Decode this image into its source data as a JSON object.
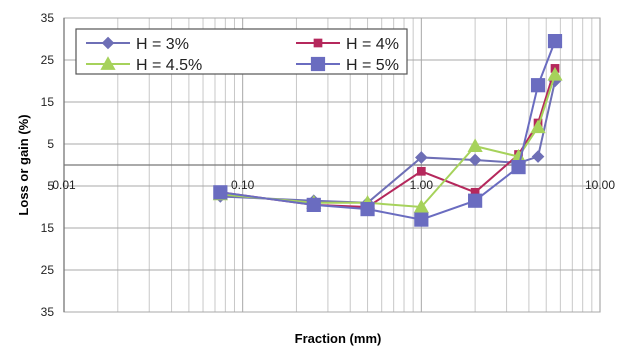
{
  "chart_data": {
    "type": "line",
    "xscale": "log",
    "xlim": [
      0.01,
      10
    ],
    "ylim": [
      -35,
      35
    ],
    "xlabel": "Fraction (mm)",
    "ylabel": "Loss or gain (%)",
    "x_tick_labels": [
      "0.01",
      "0.10",
      "1.00",
      "10.00"
    ],
    "x_tick_values": [
      0.01,
      0.1,
      1,
      10
    ],
    "y_tick_labels": [
      "35",
      "25",
      "15",
      "5",
      "5",
      "15",
      "25",
      "35"
    ],
    "y_tick_values": [
      35,
      25,
      15,
      5,
      -5,
      -15,
      -25,
      -35
    ],
    "grid": true,
    "legend_position": "top-left",
    "series": [
      {
        "name": "H = 3%",
        "marker": "diamond",
        "color": "#6e6fb6",
        "x": [
          0.075,
          0.25,
          0.5,
          1.0,
          2.0,
          3.5,
          4.5,
          5.6
        ],
        "y": [
          -7.5,
          -8.5,
          -9.0,
          1.8,
          1.2,
          0.5,
          2.0,
          20.0
        ]
      },
      {
        "name": "H = 4%",
        "marker": "square",
        "color": "#b5285c",
        "x": [
          0.075,
          0.25,
          0.5,
          1.0,
          2.0,
          3.5,
          4.5,
          5.6
        ],
        "y": [
          -6.5,
          -9.5,
          -10.0,
          -1.5,
          -6.5,
          2.5,
          10.0,
          23.0
        ]
      },
      {
        "name": "H = 4.5%",
        "marker": "triangle",
        "color": "#a6d25b",
        "x": [
          0.075,
          0.25,
          0.5,
          1.0,
          2.0,
          3.5,
          4.5,
          5.6
        ],
        "y": [
          -7.0,
          -9.0,
          -9.0,
          -10.0,
          4.5,
          2.0,
          9.0,
          21.5
        ]
      },
      {
        "name": "H = 5%",
        "marker": "square",
        "color": "#6a6cc0",
        "x": [
          0.075,
          0.25,
          0.5,
          1.0,
          2.0,
          3.5,
          4.5,
          5.6
        ],
        "y": [
          -6.5,
          -9.5,
          -10.5,
          -13.0,
          -8.5,
          -0.5,
          19.0,
          29.5
        ]
      }
    ]
  }
}
